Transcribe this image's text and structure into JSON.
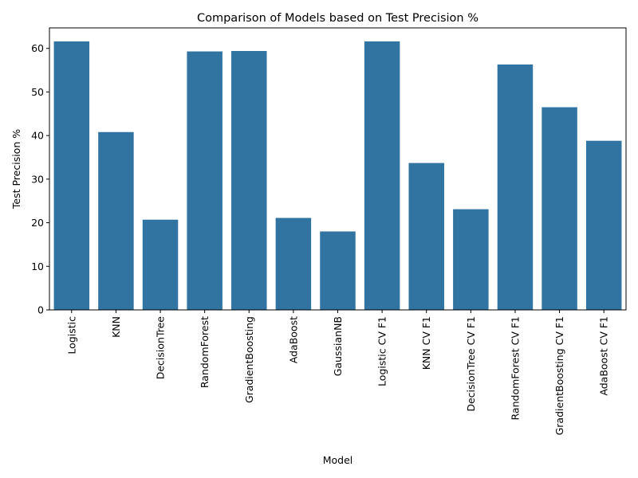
{
  "chart_data": {
    "type": "bar",
    "title": "Comparison of Models based on Test Precision %",
    "xlabel": "Model",
    "ylabel": "Test Precision %",
    "categories": [
      "Logistic",
      "KNN",
      "DecisionTree",
      "RandomForest",
      "GradientBoosting",
      "AdaBoost",
      "GaussianNB",
      "Logistic CV F1",
      "KNN CV F1",
      "DecisionTree CV F1",
      "RandomForest CV F1",
      "GradientBoosting CV F1",
      "AdaBoost CV F1"
    ],
    "values": [
      61.6,
      40.8,
      20.7,
      59.3,
      59.4,
      21.1,
      18.0,
      61.6,
      33.7,
      23.1,
      56.3,
      46.5,
      38.8
    ],
    "yticks": [
      0,
      10,
      20,
      30,
      40,
      50,
      60
    ],
    "ylim": [
      0,
      64.7
    ],
    "bar_color": "#3274a1",
    "grid": false,
    "legend": "none"
  }
}
